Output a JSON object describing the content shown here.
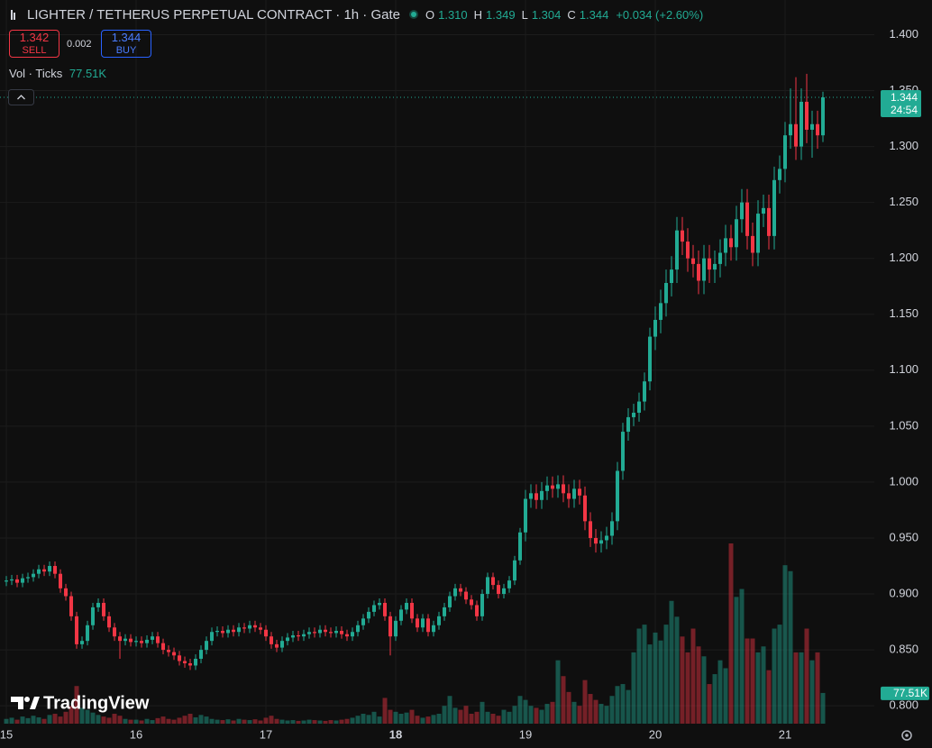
{
  "header": {
    "title": "LIGHTER / TETHERUS PERPETUAL CONTRACT · 1h · Gate",
    "ohlc": [
      {
        "key": "O",
        "value": "1.310"
      },
      {
        "key": "H",
        "value": "1.349"
      },
      {
        "key": "L",
        "value": "1.304"
      },
      {
        "key": "C",
        "value": "1.344"
      }
    ],
    "change": "+0.034 (+2.60%)"
  },
  "trade": {
    "sell_price": "1.342",
    "sell": "SELL",
    "spread": "0.002",
    "buy_price": "1.344",
    "buy": "BUY"
  },
  "volume_legend": {
    "label": "Vol · Ticks",
    "value": "77.51K"
  },
  "branding": "TradingView",
  "chart_data": {
    "type": "candlestick",
    "up_color": "#22ab94",
    "down_color": "#f23645",
    "grid": true,
    "open": [
      0.911,
      0.912,
      0.913,
      0.91,
      0.914,
      0.915,
      0.918,
      0.922,
      0.92,
      0.925,
      0.918,
      0.905,
      0.898,
      0.88,
      0.855,
      0.858,
      0.872,
      0.888,
      0.892,
      0.88,
      0.87,
      0.862,
      0.858,
      0.86,
      0.857,
      0.858,
      0.856,
      0.859,
      0.862,
      0.856,
      0.85,
      0.848,
      0.845,
      0.84,
      0.838,
      0.836,
      0.842,
      0.85,
      0.858,
      0.866,
      0.867,
      0.865,
      0.868,
      0.866,
      0.87,
      0.869,
      0.872,
      0.87,
      0.868,
      0.862,
      0.855,
      0.852,
      0.858,
      0.861,
      0.863,
      0.862,
      0.864,
      0.866,
      0.865,
      0.868,
      0.866,
      0.865,
      0.867,
      0.864,
      0.862,
      0.866,
      0.872,
      0.878,
      0.884,
      0.89,
      0.892,
      0.88,
      0.862,
      0.876,
      0.886,
      0.892,
      0.878,
      0.87,
      0.878,
      0.866,
      0.872,
      0.88,
      0.888,
      0.898,
      0.905,
      0.902,
      0.895,
      0.89,
      0.88,
      0.9,
      0.915,
      0.908,
      0.9,
      0.905,
      0.912,
      0.93,
      0.955,
      0.985,
      0.99,
      0.984,
      0.992,
      0.997,
      0.994,
      0.998,
      0.99,
      0.985,
      0.994,
      0.988,
      0.965,
      0.95,
      0.945,
      0.948,
      0.952,
      0.965,
      1.01,
      1.045,
      1.058,
      1.062,
      1.072,
      1.09,
      1.13,
      1.145,
      1.16,
      1.178,
      1.19,
      1.225,
      1.215,
      1.2,
      1.195,
      1.18,
      1.2,
      1.19,
      1.195,
      1.205,
      1.218,
      1.21,
      1.235,
      1.25,
      1.22,
      1.205,
      1.24,
      1.245,
      1.22,
      1.27,
      1.28,
      1.31,
      1.32,
      1.3,
      1.34,
      1.315,
      1.32,
      1.31
    ],
    "high": [
      0.916,
      0.917,
      0.917,
      0.918,
      0.919,
      0.922,
      0.926,
      0.926,
      0.929,
      0.929,
      0.922,
      0.909,
      0.902,
      0.884,
      0.862,
      0.876,
      0.892,
      0.896,
      0.896,
      0.884,
      0.874,
      0.866,
      0.864,
      0.864,
      0.862,
      0.862,
      0.863,
      0.866,
      0.866,
      0.86,
      0.854,
      0.852,
      0.849,
      0.844,
      0.842,
      0.846,
      0.854,
      0.862,
      0.87,
      0.871,
      0.871,
      0.872,
      0.872,
      0.874,
      0.874,
      0.876,
      0.876,
      0.874,
      0.872,
      0.866,
      0.859,
      0.862,
      0.865,
      0.867,
      0.867,
      0.868,
      0.87,
      0.87,
      0.872,
      0.872,
      0.87,
      0.871,
      0.871,
      0.868,
      0.87,
      0.876,
      0.882,
      0.888,
      0.894,
      0.896,
      0.896,
      0.884,
      0.88,
      0.89,
      0.896,
      0.896,
      0.882,
      0.882,
      0.882,
      0.876,
      0.884,
      0.892,
      0.902,
      0.909,
      0.909,
      0.906,
      0.899,
      0.894,
      0.904,
      0.919,
      0.919,
      0.912,
      0.909,
      0.916,
      0.934,
      0.959,
      0.993,
      0.998,
      0.998,
      1.0,
      1.005,
      1.005,
      1.006,
      1.006,
      0.998,
      1.002,
      1.002,
      0.996,
      0.973,
      0.958,
      0.956,
      0.96,
      0.973,
      1.018,
      1.053,
      1.066,
      1.07,
      1.08,
      1.098,
      1.138,
      1.157,
      1.172,
      1.19,
      1.202,
      1.237,
      1.237,
      1.227,
      1.212,
      1.207,
      1.212,
      1.212,
      1.207,
      1.217,
      1.23,
      1.23,
      1.247,
      1.262,
      1.262,
      1.232,
      1.252,
      1.257,
      1.257,
      1.282,
      1.292,
      1.322,
      1.352,
      1.362,
      1.352,
      1.365,
      1.332,
      1.332,
      1.349
    ],
    "low": [
      0.907,
      0.908,
      0.906,
      0.906,
      0.91,
      0.911,
      0.914,
      0.916,
      0.916,
      0.914,
      0.901,
      0.894,
      0.876,
      0.851,
      0.851,
      0.854,
      0.868,
      0.884,
      0.876,
      0.866,
      0.858,
      0.842,
      0.854,
      0.853,
      0.853,
      0.852,
      0.852,
      0.855,
      0.852,
      0.846,
      0.844,
      0.841,
      0.836,
      0.834,
      0.832,
      0.832,
      0.838,
      0.846,
      0.854,
      0.862,
      0.861,
      0.861,
      0.862,
      0.862,
      0.865,
      0.865,
      0.866,
      0.864,
      0.858,
      0.851,
      0.848,
      0.848,
      0.854,
      0.857,
      0.858,
      0.858,
      0.86,
      0.861,
      0.861,
      0.862,
      0.861,
      0.861,
      0.86,
      0.858,
      0.858,
      0.862,
      0.868,
      0.874,
      0.88,
      0.886,
      0.876,
      0.845,
      0.858,
      0.872,
      0.882,
      0.874,
      0.866,
      0.866,
      0.862,
      0.862,
      0.868,
      0.876,
      0.884,
      0.894,
      0.898,
      0.891,
      0.886,
      0.876,
      0.876,
      0.896,
      0.904,
      0.896,
      0.896,
      0.901,
      0.908,
      0.926,
      0.947,
      0.977,
      0.976,
      0.976,
      0.984,
      0.986,
      0.986,
      0.982,
      0.977,
      0.977,
      0.98,
      0.957,
      0.942,
      0.937,
      0.937,
      0.94,
      0.944,
      0.957,
      1.002,
      1.037,
      1.05,
      1.054,
      1.064,
      1.082,
      1.118,
      1.133,
      1.148,
      1.166,
      1.178,
      1.203,
      1.188,
      1.183,
      1.168,
      1.168,
      1.178,
      1.178,
      1.183,
      1.193,
      1.198,
      1.198,
      1.223,
      1.208,
      1.193,
      1.193,
      1.228,
      1.208,
      1.208,
      1.258,
      1.268,
      1.298,
      1.288,
      1.288,
      1.303,
      1.29,
      1.298,
      1.304
    ],
    "close": [
      0.912,
      0.913,
      0.91,
      0.914,
      0.915,
      0.918,
      0.922,
      0.92,
      0.925,
      0.918,
      0.905,
      0.898,
      0.88,
      0.855,
      0.858,
      0.872,
      0.888,
      0.892,
      0.88,
      0.87,
      0.862,
      0.858,
      0.86,
      0.857,
      0.858,
      0.856,
      0.859,
      0.862,
      0.856,
      0.85,
      0.848,
      0.845,
      0.84,
      0.838,
      0.836,
      0.842,
      0.85,
      0.858,
      0.866,
      0.867,
      0.865,
      0.868,
      0.866,
      0.87,
      0.869,
      0.872,
      0.87,
      0.868,
      0.862,
      0.855,
      0.852,
      0.858,
      0.861,
      0.863,
      0.862,
      0.864,
      0.866,
      0.865,
      0.868,
      0.866,
      0.865,
      0.867,
      0.864,
      0.862,
      0.866,
      0.872,
      0.878,
      0.884,
      0.89,
      0.892,
      0.88,
      0.862,
      0.876,
      0.886,
      0.892,
      0.878,
      0.87,
      0.878,
      0.866,
      0.872,
      0.88,
      0.888,
      0.898,
      0.905,
      0.902,
      0.895,
      0.89,
      0.88,
      0.9,
      0.915,
      0.908,
      0.9,
      0.905,
      0.912,
      0.93,
      0.955,
      0.985,
      0.99,
      0.984,
      0.992,
      0.997,
      0.994,
      0.998,
      0.99,
      0.985,
      0.994,
      0.988,
      0.965,
      0.95,
      0.945,
      0.948,
      0.952,
      0.965,
      1.01,
      1.045,
      1.058,
      1.062,
      1.072,
      1.09,
      1.13,
      1.145,
      1.16,
      1.178,
      1.19,
      1.225,
      1.215,
      1.2,
      1.195,
      1.18,
      1.2,
      1.19,
      1.195,
      1.205,
      1.218,
      1.21,
      1.235,
      1.25,
      1.22,
      1.205,
      1.24,
      1.245,
      1.22,
      1.27,
      1.28,
      1.31,
      1.32,
      1.3,
      1.34,
      1.315,
      1.32,
      1.31,
      1.344
    ],
    "volume": [
      12,
      15,
      10,
      18,
      14,
      20,
      16,
      12,
      22,
      25,
      18,
      30,
      45,
      95,
      40,
      35,
      28,
      22,
      18,
      15,
      25,
      20,
      12,
      10,
      10,
      8,
      12,
      9,
      14,
      18,
      12,
      10,
      15,
      20,
      25,
      16,
      22,
      18,
      12,
      10,
      9,
      11,
      8,
      12,
      10,
      9,
      11,
      8,
      15,
      20,
      12,
      10,
      8,
      9,
      7,
      8,
      10,
      9,
      8,
      7,
      9,
      8,
      10,
      12,
      15,
      20,
      25,
      22,
      30,
      18,
      65,
      35,
      30,
      25,
      28,
      35,
      20,
      15,
      18,
      22,
      25,
      45,
      70,
      40,
      35,
      45,
      25,
      30,
      55,
      30,
      25,
      20,
      35,
      30,
      45,
      70,
      60,
      45,
      40,
      35,
      50,
      55,
      160,
      120,
      80,
      55,
      45,
      110,
      75,
      60,
      50,
      45,
      70,
      95,
      100,
      85,
      180,
      240,
      250,
      200,
      230,
      210,
      250,
      310,
      270,
      220,
      180,
      240,
      195,
      170,
      100,
      125,
      160,
      140,
      455,
      320,
      340,
      215,
      215,
      180,
      195,
      135,
      240,
      250,
      400,
      385,
      180,
      180,
      240,
      160,
      180,
      77.51
    ],
    "volume_last_label": "77.51K",
    "ylim": [
      0.784,
      1.431
    ],
    "yticks": [
      {
        "value": 0.8,
        "label": "0.800"
      },
      {
        "value": 0.85,
        "label": "0.850"
      },
      {
        "value": 0.9,
        "label": "0.900"
      },
      {
        "value": 0.95,
        "label": "0.950"
      },
      {
        "value": 1.0,
        "label": "1.000"
      },
      {
        "value": 1.05,
        "label": "1.050"
      },
      {
        "value": 1.1,
        "label": "1.100"
      },
      {
        "value": 1.15,
        "label": "1.150"
      },
      {
        "value": 1.2,
        "label": "1.200"
      },
      {
        "value": 1.25,
        "label": "1.250"
      },
      {
        "value": 1.3,
        "label": "1.300"
      },
      {
        "value": 1.35,
        "label": "1.350"
      },
      {
        "value": 1.4,
        "label": "1.400"
      }
    ],
    "xlim": [
      -1.17,
      160.5
    ],
    "xticks": [
      {
        "value": 0,
        "label": "15"
      },
      {
        "value": 24,
        "label": "16"
      },
      {
        "value": 48,
        "label": "17"
      },
      {
        "value": 72,
        "label": "18"
      },
      {
        "value": 96,
        "label": "19"
      },
      {
        "value": 120,
        "label": "20"
      },
      {
        "value": 144,
        "label": "21"
      }
    ],
    "last_price": {
      "value": 1.344,
      "label": "1.344"
    },
    "countdown": "24:54"
  }
}
